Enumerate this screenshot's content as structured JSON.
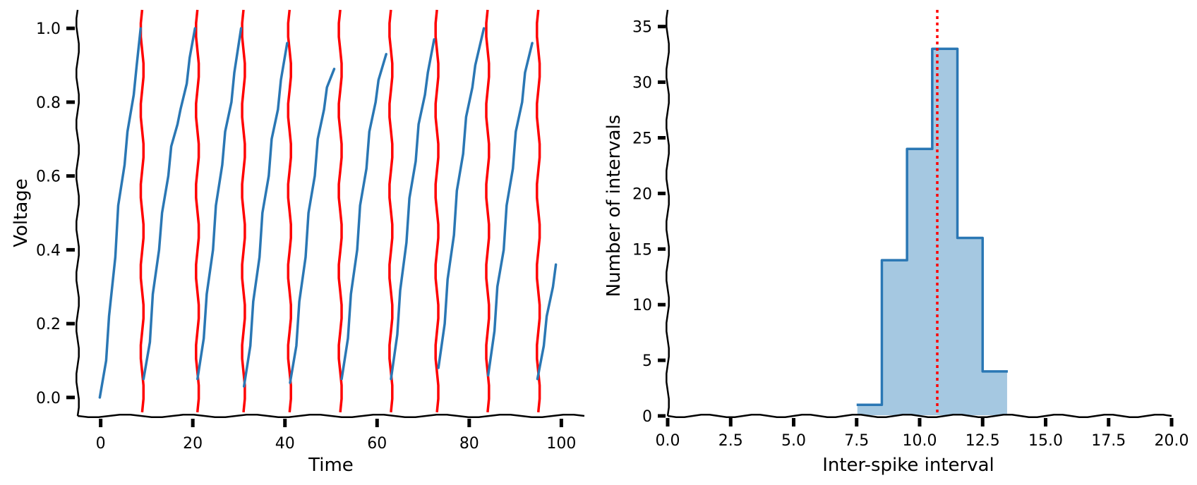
{
  "chart_data": [
    {
      "type": "line",
      "xlabel": "Time",
      "ylabel": "Voltage",
      "xlim": [
        -5,
        105
      ],
      "ylim": [
        -0.05,
        1.05
      ],
      "xticks": [
        0,
        20,
        40,
        60,
        80,
        100
      ],
      "xtick_labels": [
        "0",
        "20",
        "40",
        "60",
        "80",
        "100"
      ],
      "yticks": [
        0.0,
        0.2,
        0.4,
        0.6,
        0.8,
        1.0
      ],
      "ytick_labels": [
        "0.0",
        "0.2",
        "0.4",
        "0.6",
        "0.8",
        "1.0"
      ],
      "grid": false,
      "series": [
        {
          "segments": [
            [
              [
                0,
                0.0
              ],
              [
                1,
                0.1
              ],
              [
                2,
                0.22
              ],
              [
                3,
                0.38
              ],
              [
                4,
                0.52
              ],
              [
                5,
                0.63
              ],
              [
                6,
                0.72
              ],
              [
                7,
                0.82
              ],
              [
                8,
                0.9
              ],
              [
                8.5,
                1.0
              ]
            ],
            [
              [
                9.5,
                0.05
              ],
              [
                10.5,
                0.15
              ],
              [
                11.5,
                0.28
              ],
              [
                12.5,
                0.4
              ],
              [
                13.5,
                0.5
              ],
              [
                14.5,
                0.6
              ],
              [
                15.5,
                0.68
              ],
              [
                16.5,
                0.74
              ],
              [
                17.5,
                0.78
              ],
              [
                18.5,
                0.85
              ],
              [
                19.5,
                0.92
              ],
              [
                20.3,
                1.0
              ]
            ],
            [
              [
                21.2,
                0.05
              ],
              [
                22.2,
                0.16
              ],
              [
                23.2,
                0.28
              ],
              [
                24.2,
                0.4
              ],
              [
                25.2,
                0.52
              ],
              [
                26.2,
                0.63
              ],
              [
                27.2,
                0.72
              ],
              [
                28.2,
                0.8
              ],
              [
                29.2,
                0.88
              ],
              [
                30.3,
                1.0
              ]
            ],
            [
              [
                31.3,
                0.03
              ],
              [
                32.3,
                0.14
              ],
              [
                33.3,
                0.26
              ],
              [
                34.3,
                0.38
              ],
              [
                35.3,
                0.5
              ],
              [
                36.3,
                0.6
              ],
              [
                37.3,
                0.7
              ],
              [
                38.3,
                0.78
              ],
              [
                39.3,
                0.86
              ],
              [
                40.3,
                0.96
              ]
            ],
            [
              [
                41.3,
                0.04
              ],
              [
                42.3,
                0.14
              ],
              [
                43.3,
                0.26
              ],
              [
                44.3,
                0.38
              ],
              [
                45.3,
                0.5
              ],
              [
                46.3,
                0.6
              ],
              [
                47.3,
                0.7
              ],
              [
                48.3,
                0.78
              ],
              [
                49.3,
                0.84
              ],
              [
                50.5,
                0.89
              ]
            ],
            [
              [
                52.5,
                0.05
              ],
              [
                53.5,
                0.16
              ],
              [
                54.5,
                0.28
              ],
              [
                55.5,
                0.4
              ],
              [
                56.5,
                0.52
              ],
              [
                57.5,
                0.62
              ],
              [
                58.5,
                0.72
              ],
              [
                59.5,
                0.8
              ],
              [
                60.5,
                0.86
              ],
              [
                61.8,
                0.93
              ]
            ],
            [
              [
                63.2,
                0.05
              ],
              [
                64.2,
                0.17
              ],
              [
                65.2,
                0.29
              ],
              [
                66.2,
                0.42
              ],
              [
                67.2,
                0.54
              ],
              [
                68.2,
                0.64
              ],
              [
                69.2,
                0.74
              ],
              [
                70.2,
                0.82
              ],
              [
                71.2,
                0.88
              ],
              [
                72.2,
                0.97
              ]
            ],
            [
              [
                73.5,
                0.08
              ],
              [
                74.5,
                0.2
              ],
              [
                75.5,
                0.32
              ],
              [
                76.5,
                0.44
              ],
              [
                77.5,
                0.56
              ],
              [
                78.5,
                0.66
              ],
              [
                79.5,
                0.76
              ],
              [
                80.5,
                0.84
              ],
              [
                81.5,
                0.9
              ],
              [
                83.0,
                1.0
              ]
            ],
            [
              [
                84.3,
                0.06
              ],
              [
                85.3,
                0.18
              ],
              [
                86.3,
                0.3
              ],
              [
                87.3,
                0.4
              ],
              [
                88.3,
                0.52
              ],
              [
                89.3,
                0.62
              ],
              [
                90.3,
                0.72
              ],
              [
                91.3,
                0.8
              ],
              [
                92.3,
                0.88
              ],
              [
                93.5,
                0.96
              ]
            ],
            [
              [
                95.0,
                0.05
              ],
              [
                96.0,
                0.14
              ],
              [
                97.0,
                0.22
              ],
              [
                98.0,
                0.3
              ],
              [
                99.0,
                0.36
              ]
            ]
          ],
          "color": "#2a77b4"
        }
      ],
      "spike_times": [
        9,
        21,
        31,
        41,
        52,
        63,
        73,
        84,
        95
      ],
      "spike_color": "#ff0000"
    },
    {
      "type": "bar",
      "xlabel": "Inter-spike interval",
      "ylabel": "Number of intervals",
      "xlim": [
        0,
        20
      ],
      "ylim": [
        0,
        36.5
      ],
      "xticks": [
        0,
        2.5,
        5,
        7.5,
        10,
        12.5,
        15,
        17.5,
        20
      ],
      "xtick_labels": [
        "0.0",
        "2.5",
        "5.0",
        "7.5",
        "10.0",
        "12.5",
        "15.0",
        "17.5",
        "20.0"
      ],
      "yticks": [
        0,
        5,
        10,
        15,
        20,
        25,
        30,
        35
      ],
      "ytick_labels": [
        "0",
        "5",
        "10",
        "15",
        "20",
        "25",
        "30",
        "35"
      ],
      "grid": false,
      "bin_edges": [
        7.5,
        8.5,
        9.5,
        10.5,
        11.5,
        12.5,
        13.5
      ],
      "counts": [
        1,
        14,
        24,
        33,
        16,
        4
      ],
      "fill_color": "#a5c8e1",
      "edge_color": "#2a77b4",
      "mean_line": 10.7,
      "mean_line_color": "#ff0000"
    }
  ]
}
